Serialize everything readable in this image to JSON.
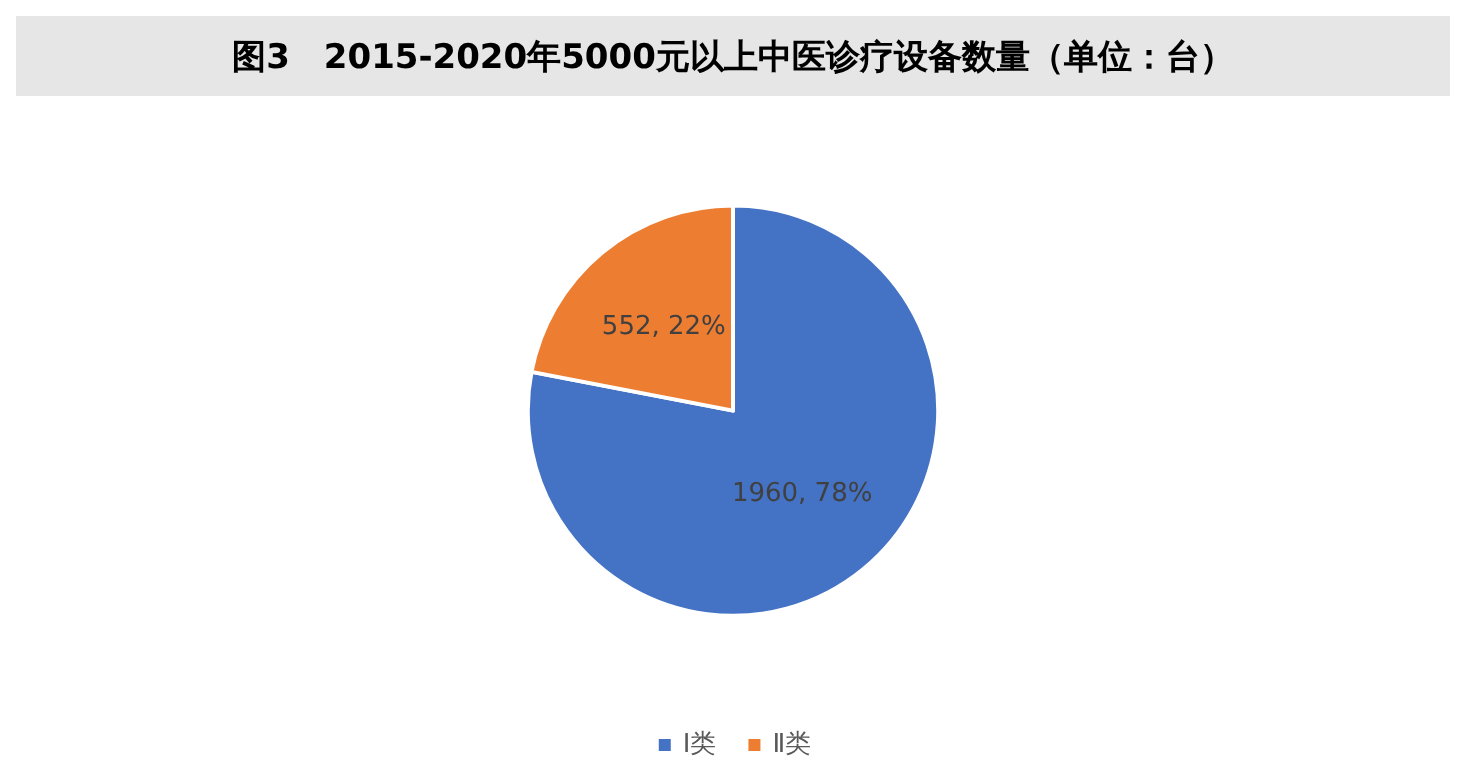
{
  "chart_data": {
    "type": "pie",
    "title": "图3　2015-2020年5000元以上中医诊疗设备数量（单位：台）",
    "categories": [
      "Ⅰ类",
      "Ⅱ类"
    ],
    "values": [
      1960,
      552
    ],
    "colors": [
      "#4472c4",
      "#ed7d31"
    ],
    "value_labels": [
      "1960, 78%",
      "552, 22%"
    ],
    "legend": "bottom"
  }
}
